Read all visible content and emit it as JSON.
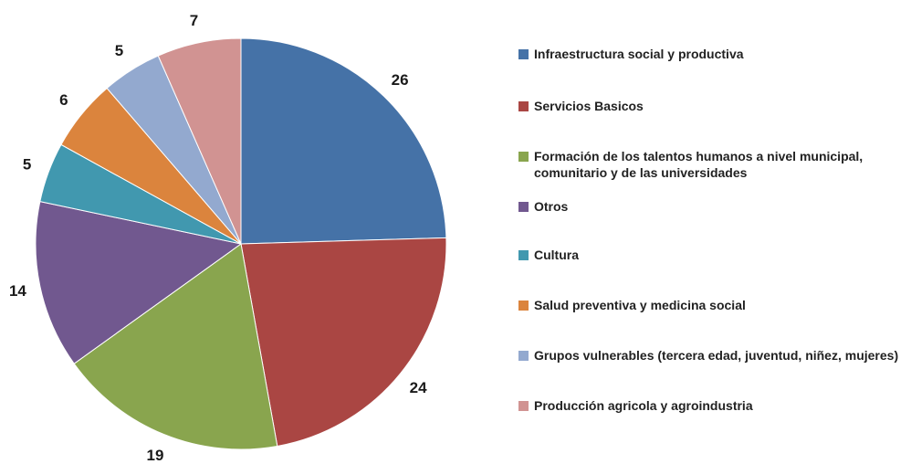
{
  "chart_data": {
    "type": "pie",
    "title": "",
    "slices": [
      {
        "label": "Infraestructura social y productiva",
        "value": 26,
        "color": "#4572a7"
      },
      {
        "label": "Servicios Basicos",
        "value": 24,
        "color": "#aa4643"
      },
      {
        "label": "Formación de los talentos humanos a nivel municipal, comunitario y de las universidades",
        "value": 19,
        "color": "#89a54e"
      },
      {
        "label": "Otros",
        "value": 14,
        "color": "#71588f"
      },
      {
        "label": "Cultura",
        "value": 5,
        "color": "#4198af"
      },
      {
        "label": "Salud preventiva y medicina social",
        "value": 6,
        "color": "#db843d"
      },
      {
        "label": "Grupos vulnerables (tercera edad, juventud, niñez, mujeres)",
        "value": 5,
        "color": "#93a9cf"
      },
      {
        "label": "Producción agricola y agroindustria",
        "value": 7,
        "color": "#d19392"
      }
    ],
    "legend_position": "right",
    "data_labels": "outside"
  }
}
